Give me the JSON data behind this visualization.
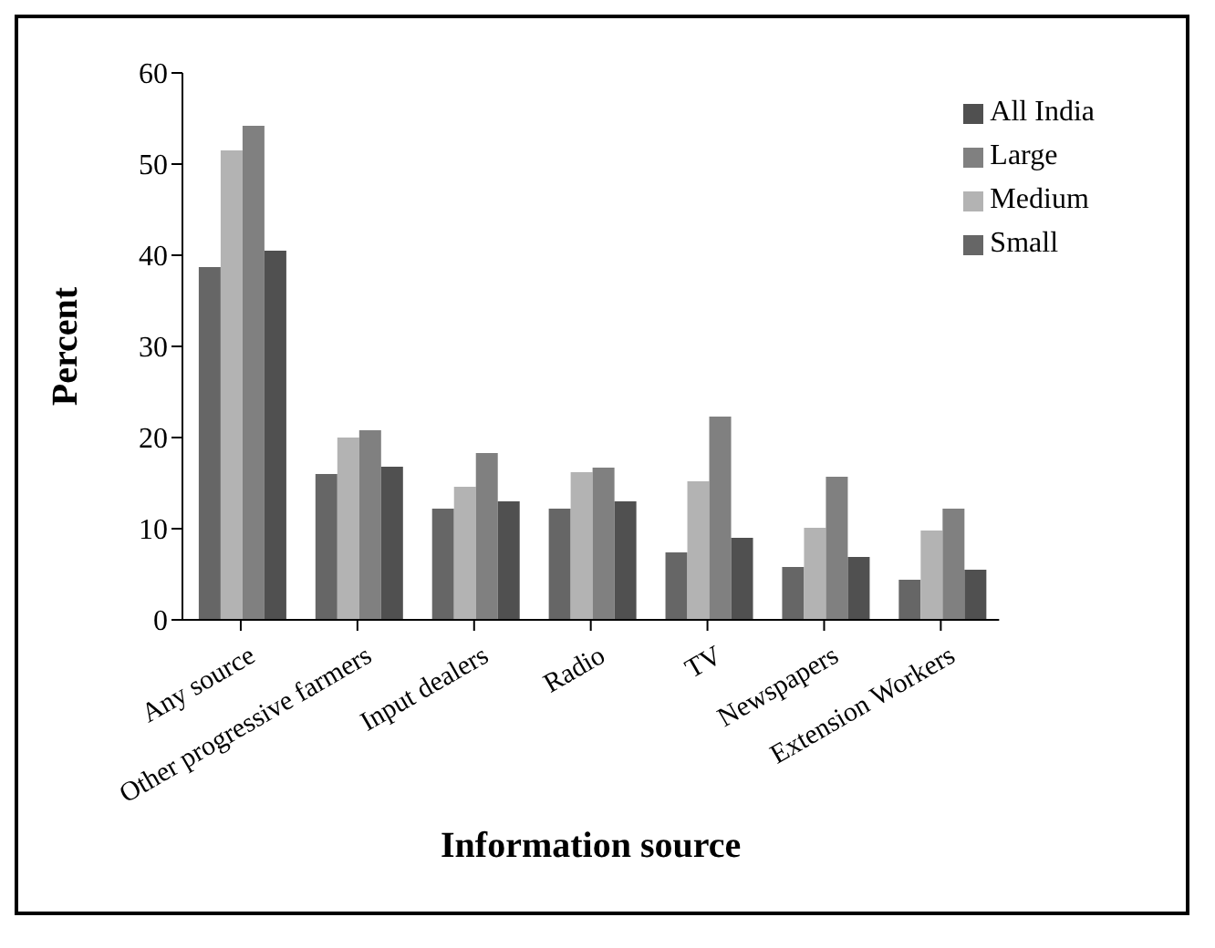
{
  "chart_data": {
    "type": "bar",
    "xlabel": "Information source",
    "ylabel": "Percent",
    "categories": [
      "Any source",
      "Other progressive farmers",
      "Input dealers",
      "Radio",
      "TV",
      "Newspapers",
      "Extension Workers"
    ],
    "series": [
      {
        "name": "Small",
        "color": "#666666",
        "values": [
          38.7,
          16,
          12.2,
          12.2,
          7.4,
          5.8,
          4.4
        ]
      },
      {
        "name": "Medium",
        "color": "#b3b3b3",
        "values": [
          51.5,
          20,
          14.6,
          16.2,
          15.2,
          10.1,
          9.8
        ]
      },
      {
        "name": "Large",
        "color": "#808080",
        "values": [
          54.2,
          20.8,
          18.3,
          16.7,
          22.3,
          15.7,
          12.2
        ]
      },
      {
        "name": "All India",
        "color": "#505050",
        "values": [
          40.5,
          16.8,
          13,
          13,
          9,
          6.9,
          5.5
        ]
      }
    ],
    "ylim": [
      0,
      60
    ],
    "yticks": [
      0,
      10,
      20,
      30,
      40,
      50,
      60
    ],
    "grid": false,
    "legend": "top right"
  }
}
